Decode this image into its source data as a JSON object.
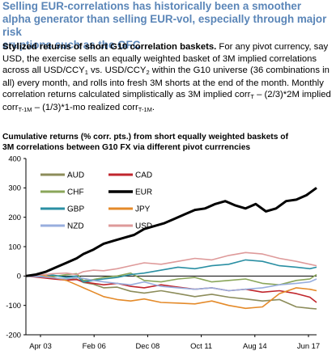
{
  "headline": {
    "line1": "Selling EUR-correlations has historically been a smoother",
    "line2": "alpha generator than selling EUR-vol, especially through major risk",
    "line3": "eruptions such as the GFC"
  },
  "paragraph": {
    "lead": "Stylized returns of short G10 correlation baskets.",
    "t1": " For any pivot currency, say USD, the exercise sells an equally weighted basket of 3M implied correlations across all USD/CCY",
    "s1": "1",
    "t2": " vs. USD/CCY",
    "s2": "2",
    "t3": " within the G10 universe (36 combinations in all) every month, and rolls into fresh 3M shorts at the end of the month. Monthly correlation returns calculated simplistically as 3M implied corr",
    "s3": "T",
    "t4": " – (2/3)*2M implied corr",
    "s4": "T-1M",
    "t5": " – (1/3)*1-mo realized corr",
    "s5": "T-1M",
    "t6": "."
  },
  "chart_data": {
    "type": "line",
    "title_line1": "Cumulative returns (% corr. pts.) from short equally weighted baskets of",
    "title_line2": "3M correlations between G10 FX via different pivot currrencies",
    "xlabel": "",
    "ylabel": "",
    "x_tick_labels": [
      "Apr 03",
      "Feb 06",
      "Dec 08",
      "Oct 11",
      "Aug 14",
      "Jun 17"
    ],
    "x_range": [
      "Apr 03",
      "Jun 17"
    ],
    "ylim": [
      -200,
      400
    ],
    "y_ticks": [
      -200,
      -100,
      0,
      100,
      200,
      300,
      400
    ],
    "grid": false,
    "legend": "top-left, two columns",
    "series": [
      {
        "name": "AUD",
        "color": "#8c8c5a",
        "width": 1.6,
        "t": [
          0,
          8,
          16,
          24,
          30,
          34,
          40,
          46,
          54,
          62,
          70,
          80,
          90,
          100,
          110,
          120,
          130,
          140,
          150,
          160,
          168,
          172
        ],
        "values": [
          0,
          -3,
          -8,
          -12,
          -10,
          -22,
          -28,
          -40,
          -38,
          -52,
          -58,
          -50,
          -60,
          -70,
          -62,
          -72,
          -78,
          -85,
          -80,
          -105,
          -110,
          -112
        ]
      },
      {
        "name": "CAD",
        "color": "#c0262d",
        "width": 1.6,
        "t": [
          0,
          8,
          16,
          24,
          30,
          34,
          40,
          46,
          54,
          62,
          70,
          80,
          90,
          100,
          110,
          120,
          130,
          140,
          150,
          160,
          168,
          172
        ],
        "values": [
          0,
          -5,
          -10,
          -14,
          -12,
          -20,
          -25,
          -30,
          -25,
          -35,
          -40,
          -30,
          -38,
          -45,
          -40,
          -50,
          -45,
          -55,
          -50,
          -60,
          -72,
          -90
        ]
      },
      {
        "name": "CHF",
        "color": "#8aa65a",
        "width": 1.6,
        "t": [
          0,
          8,
          16,
          24,
          30,
          34,
          40,
          46,
          54,
          62,
          70,
          80,
          90,
          100,
          110,
          120,
          130,
          140,
          150,
          160,
          168,
          172
        ],
        "values": [
          0,
          2,
          -2,
          5,
          8,
          -15,
          -12,
          -5,
          0,
          10,
          -15,
          -20,
          -10,
          -5,
          -20,
          -15,
          -10,
          -25,
          -30,
          -15,
          -10,
          5
        ]
      },
      {
        "name": "EUR",
        "color": "#000000",
        "width": 3.0,
        "t": [
          0,
          6,
          12,
          18,
          24,
          30,
          34,
          40,
          46,
          52,
          58,
          64,
          70,
          76,
          82,
          88,
          94,
          100,
          106,
          112,
          118,
          124,
          130,
          136,
          142,
          148,
          154,
          160,
          166,
          172
        ],
        "values": [
          0,
          5,
          15,
          30,
          45,
          60,
          75,
          90,
          110,
          120,
          130,
          140,
          160,
          170,
          180,
          195,
          210,
          225,
          230,
          245,
          255,
          240,
          230,
          245,
          220,
          230,
          255,
          260,
          275,
          300
        ]
      },
      {
        "name": "GBP",
        "color": "#2a8fa3",
        "width": 1.6,
        "t": [
          0,
          8,
          16,
          24,
          30,
          34,
          40,
          46,
          54,
          62,
          70,
          80,
          90,
          100,
          110,
          120,
          130,
          140,
          150,
          160,
          168,
          172
        ],
        "values": [
          0,
          -2,
          3,
          -5,
          0,
          -20,
          -15,
          -10,
          -5,
          5,
          10,
          20,
          30,
          25,
          35,
          40,
          55,
          50,
          35,
          30,
          25,
          30
        ]
      },
      {
        "name": "JPY",
        "color": "#e48a29",
        "width": 1.6,
        "t": [
          0,
          8,
          16,
          24,
          30,
          34,
          40,
          46,
          54,
          62,
          70,
          80,
          90,
          100,
          110,
          120,
          130,
          140,
          150,
          160,
          168,
          172
        ],
        "values": [
          0,
          5,
          -5,
          -15,
          -30,
          -40,
          -55,
          -70,
          -80,
          -85,
          -78,
          -90,
          -92,
          -95,
          -85,
          -100,
          -110,
          -105,
          -60,
          -40,
          -45,
          -50
        ]
      },
      {
        "name": "NZD",
        "color": "#98aede",
        "width": 1.6,
        "t": [
          0,
          8,
          16,
          24,
          30,
          34,
          40,
          46,
          54,
          62,
          70,
          80,
          90,
          100,
          110,
          120,
          130,
          140,
          150,
          160,
          168,
          172
        ],
        "values": [
          0,
          -2,
          -6,
          -10,
          -5,
          -8,
          -15,
          -20,
          -25,
          -30,
          -20,
          -35,
          -40,
          -45,
          -40,
          -50,
          -45,
          -40,
          -30,
          -25,
          -20,
          -10
        ]
      },
      {
        "name": "USD",
        "color": "#de9a9a",
        "width": 1.6,
        "t": [
          0,
          8,
          16,
          24,
          30,
          34,
          40,
          46,
          54,
          62,
          70,
          80,
          90,
          100,
          110,
          120,
          130,
          140,
          150,
          160,
          168,
          172
        ],
        "values": [
          0,
          3,
          8,
          10,
          5,
          15,
          20,
          18,
          25,
          35,
          45,
          40,
          50,
          60,
          55,
          70,
          80,
          75,
          60,
          50,
          40,
          35
        ]
      }
    ]
  }
}
